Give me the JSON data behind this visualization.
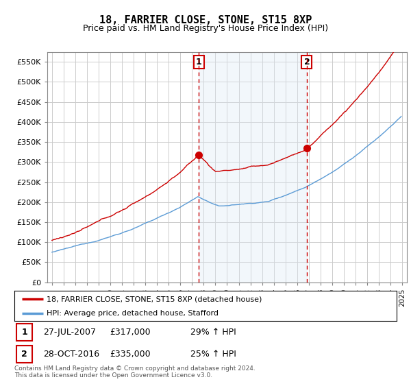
{
  "title": "18, FARRIER CLOSE, STONE, ST15 8XP",
  "subtitle": "Price paid vs. HM Land Registry's House Price Index (HPI)",
  "ylim": [
    0,
    575000
  ],
  "yticks": [
    0,
    50000,
    100000,
    150000,
    200000,
    250000,
    300000,
    350000,
    400000,
    450000,
    500000,
    550000
  ],
  "ytick_labels": [
    "£0",
    "£50K",
    "£100K",
    "£150K",
    "£200K",
    "£250K",
    "£300K",
    "£350K",
    "£400K",
    "£450K",
    "£500K",
    "£550K"
  ],
  "hpi_color": "#5b9bd5",
  "price_color": "#cc0000",
  "vline_color": "#cc0000",
  "shade_color": "#dce9f5",
  "grid_color": "#cccccc",
  "background_color": "#ffffff",
  "purchase1_date": 2007.58,
  "purchase1_price": 317000,
  "purchase1_label": "1",
  "purchase2_date": 2016.83,
  "purchase2_price": 335000,
  "purchase2_label": "2",
  "legend1": "18, FARRIER CLOSE, STONE, ST15 8XP (detached house)",
  "legend2": "HPI: Average price, detached house, Stafford",
  "footer1": "Contains HM Land Registry data © Crown copyright and database right 2024.",
  "footer2": "This data is licensed under the Open Government Licence v3.0.",
  "table_row1": [
    "1",
    "27-JUL-2007",
    "£317,000",
    "29% ↑ HPI"
  ],
  "table_row2": [
    "2",
    "28-OCT-2016",
    "£335,000",
    "25% ↑ HPI"
  ],
  "xstart": 1995,
  "xend": 2025
}
